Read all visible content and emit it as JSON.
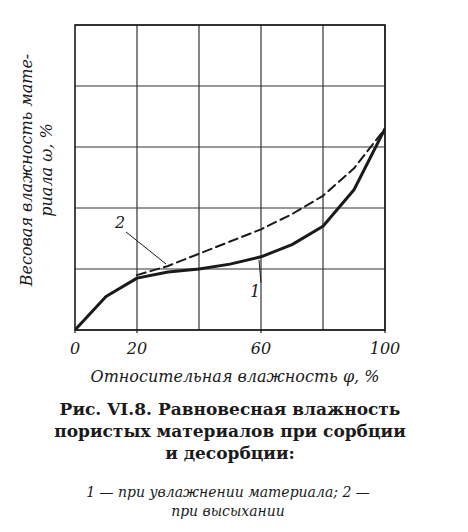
{
  "chart_data": {
    "type": "line",
    "title": [
      "Рис. VI.8. Равновесная влажность",
      "пористых материалов при сорбции",
      "и десорбции:"
    ],
    "subtitle": [
      "1 — при увлажнении материала; 2 —",
      "при высыхании"
    ],
    "x_label": "Относительная влажность φ, %",
    "y_label": [
      "Весовая влажность мате-",
      "риала ω, %"
    ],
    "x": [
      0,
      10,
      20,
      30,
      40,
      50,
      60,
      70,
      80,
      90,
      100
    ],
    "series": [
      {
        "name": "1",
        "color": "#1a1a1a",
        "line_style": "solid",
        "values": [
          0,
          0.55,
          0.85,
          0.95,
          1.0,
          1.08,
          1.2,
          1.4,
          1.7,
          2.3,
          3.3
        ]
      },
      {
        "name": "2",
        "color": "#1a1a1a",
        "line_style": "dashed",
        "values": [
          null,
          null,
          0.9,
          1.05,
          1.25,
          1.45,
          1.65,
          1.9,
          2.2,
          2.65,
          3.3
        ]
      }
    ],
    "xlim": [
      0,
      100
    ],
    "xticks": [
      0,
      20,
      60,
      100
    ],
    "xgrid": [
      20,
      40,
      60,
      80,
      100
    ],
    "ylim": [
      0,
      5
    ],
    "yticks": [
      0,
      1,
      2,
      3,
      4,
      5
    ],
    "grid": true,
    "tick_labels": "x"
  }
}
